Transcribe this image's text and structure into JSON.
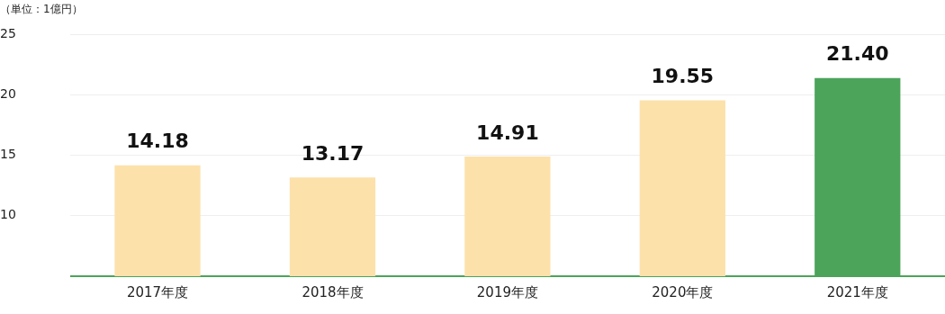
{
  "chart_data": {
    "type": "bar",
    "ylabel": "（単位：1億円）",
    "categories": [
      "2017年度",
      "2018年度",
      "2019年度",
      "2020年度",
      "2021年度"
    ],
    "values": [
      14.18,
      13.17,
      14.91,
      19.55,
      21.4
    ],
    "colors": [
      "#fde1ab",
      "#fde1ab",
      "#fde1ab",
      "#fde1ab",
      "#4ca35a"
    ],
    "value_labels": [
      "14.18",
      "13.17",
      "14.91",
      "19.55",
      "21.40"
    ],
    "ylim": [
      5,
      25
    ],
    "yticks": [
      {
        "value": 5,
        "label": null
      },
      10,
      15,
      20,
      25
    ],
    "grid": "y"
  }
}
